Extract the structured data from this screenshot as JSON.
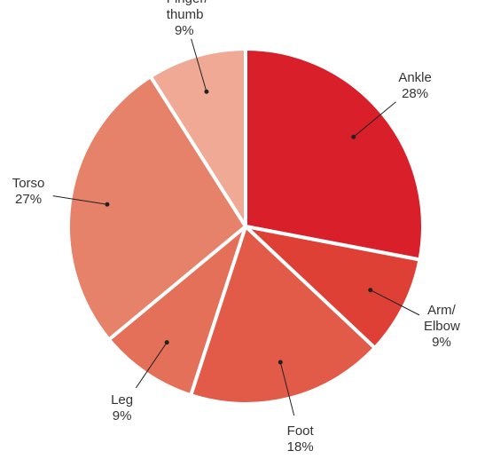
{
  "chart_data": {
    "type": "pie",
    "categories": [
      "Ankle",
      "Arm/Elbow",
      "Foot",
      "Leg",
      "Torso",
      "Finger/thumb"
    ],
    "values": [
      28,
      9,
      18,
      9,
      27,
      9
    ],
    "value_labels": [
      "28%",
      "9%",
      "18%",
      "9%",
      "27%",
      "9%"
    ],
    "colors": [
      "#d81f2a",
      "#de4035",
      "#e25a48",
      "#e5705a",
      "#e6826a",
      "#efa994"
    ]
  }
}
